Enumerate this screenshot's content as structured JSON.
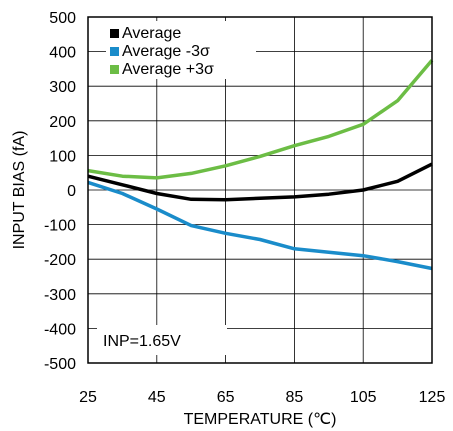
{
  "chart_data": {
    "type": "line",
    "xlabel": "TEMPERATURE (℃)",
    "ylabel": "INPUT BIAS (fA)",
    "xlim": [
      25,
      125
    ],
    "ylim": [
      -500,
      500
    ],
    "x_ticks": [
      25,
      45,
      65,
      85,
      105,
      125
    ],
    "y_ticks": [
      500,
      400,
      300,
      200,
      100,
      0,
      -100,
      -200,
      -300,
      -400,
      -500
    ],
    "grid": true,
    "legend_position": "top-left",
    "annotation": "INP=1.65V",
    "series": [
      {
        "name": "Average",
        "color": "#000000",
        "x": [
          25,
          35,
          45,
          55,
          65,
          75,
          85,
          95,
          105,
          115,
          125
        ],
        "y": [
          40,
          15,
          -10,
          -27,
          -28,
          -24,
          -20,
          -12,
          0,
          25,
          75
        ]
      },
      {
        "name": "Average -3σ",
        "color": "#1a8cca",
        "x": [
          25,
          35,
          45,
          55,
          65,
          75,
          85,
          95,
          105,
          115,
          125
        ],
        "y": [
          22,
          -10,
          -55,
          -103,
          -125,
          -143,
          -170,
          -180,
          -190,
          -207,
          -227
        ]
      },
      {
        "name": "Average +3σ",
        "color": "#6cbd45",
        "x": [
          25,
          35,
          45,
          55,
          65,
          75,
          85,
          95,
          105,
          115,
          125
        ],
        "y": [
          56,
          40,
          35,
          48,
          70,
          97,
          128,
          155,
          190,
          258,
          375
        ]
      }
    ]
  }
}
